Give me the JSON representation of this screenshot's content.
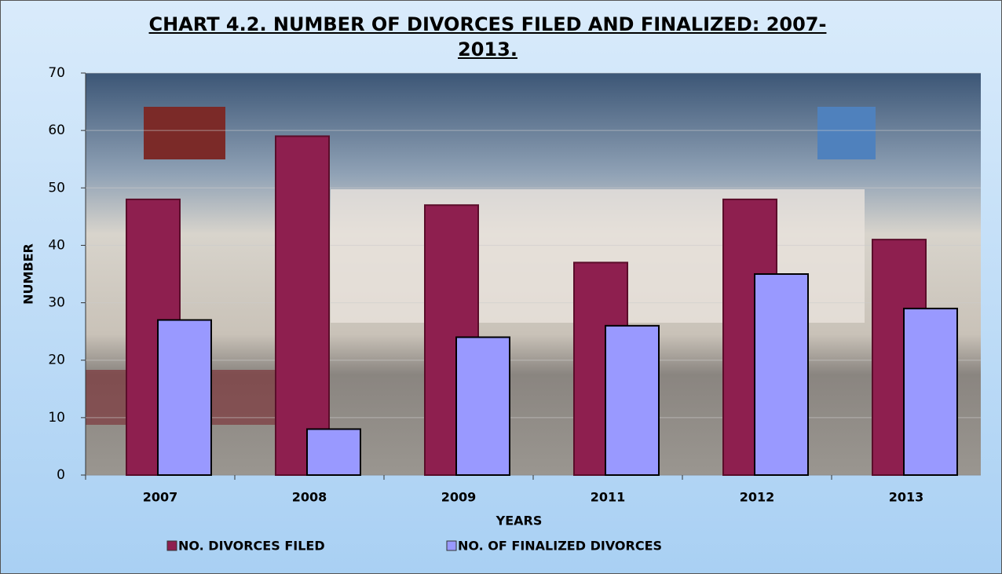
{
  "chart_data": {
    "type": "bar",
    "title": "CHART 4.2. NUMBER OF DIVORCES FILED AND FINALIZED: 2007-2013.",
    "x_label": "YEARS",
    "y_label": "NUMBER",
    "categories": [
      "2007",
      "2008",
      "2009",
      "2011",
      "2012",
      "2013"
    ],
    "series": [
      {
        "name": "NO. DIVORCES FILED",
        "color": "#8e1f4f",
        "values": [
          48,
          59,
          47,
          37,
          48,
          41
        ]
      },
      {
        "name": "NO. OF FINALIZED DIVORCES",
        "color": "#9999ff",
        "values": [
          27,
          8,
          24,
          26,
          35,
          29
        ]
      }
    ],
    "ylim": [
      0,
      70
    ],
    "yticks": [
      0,
      10,
      20,
      30,
      40,
      50,
      60,
      70
    ],
    "grid": true,
    "legend": "bottom"
  }
}
